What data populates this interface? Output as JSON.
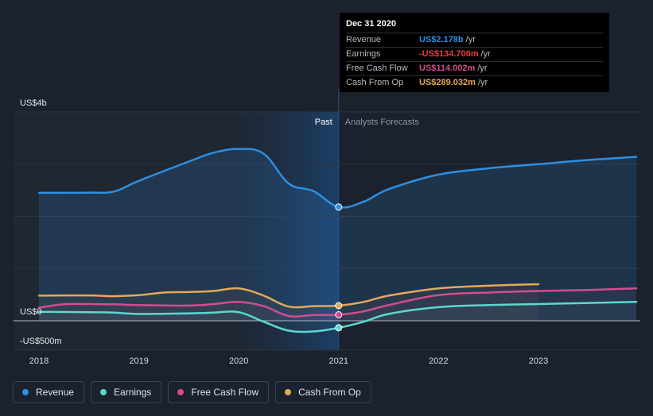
{
  "chart_data": {
    "type": "line",
    "y_ticks": [
      {
        "value": 4000,
        "label": "US$4b"
      },
      {
        "value": 0,
        "label": "US$0"
      },
      {
        "value": -500,
        "label": "-US$500m"
      }
    ],
    "x_ticks": [
      {
        "value": 2018,
        "label": "2018"
      },
      {
        "value": 2019,
        "label": "2019"
      },
      {
        "value": 2020,
        "label": "2020"
      },
      {
        "value": 2021,
        "label": "2021"
      },
      {
        "value": 2022,
        "label": "2022"
      },
      {
        "value": 2023,
        "label": "2023"
      }
    ],
    "ylim": [
      -500,
      4000
    ],
    "xlim": [
      2017.75,
      2023.98
    ],
    "grid": true,
    "past_label": "Past",
    "forecast_label": "Analysts Forecasts",
    "past_end": 2021.0,
    "past_highlight_start": 2020.0,
    "series": [
      {
        "name": "Revenue",
        "color": "#2e8fe0",
        "filled": true,
        "points": [
          [
            2018.0,
            2450
          ],
          [
            2018.5,
            2455
          ],
          [
            2018.75,
            2475
          ],
          [
            2019.0,
            2680
          ],
          [
            2019.5,
            3050
          ],
          [
            2019.75,
            3220
          ],
          [
            2020.0,
            3290
          ],
          [
            2020.25,
            3200
          ],
          [
            2020.5,
            2630
          ],
          [
            2020.75,
            2480
          ],
          [
            2021.0,
            2178
          ],
          [
            2021.25,
            2280
          ],
          [
            2021.5,
            2520
          ],
          [
            2022.0,
            2800
          ],
          [
            2022.5,
            2920
          ],
          [
            2023.0,
            3000
          ],
          [
            2023.5,
            3080
          ],
          [
            2023.98,
            3140
          ]
        ]
      },
      {
        "name": "Earnings",
        "color": "#5ad9cf",
        "filled": false,
        "points": [
          [
            2018.0,
            170
          ],
          [
            2018.5,
            165
          ],
          [
            2018.75,
            155
          ],
          [
            2019.0,
            130
          ],
          [
            2019.5,
            140
          ],
          [
            2019.75,
            155
          ],
          [
            2020.0,
            165
          ],
          [
            2020.25,
            -20
          ],
          [
            2020.5,
            -190
          ],
          [
            2020.75,
            -205
          ],
          [
            2021.0,
            -134.7
          ],
          [
            2021.25,
            -20
          ],
          [
            2021.5,
            130
          ],
          [
            2022.0,
            260
          ],
          [
            2022.5,
            300
          ],
          [
            2023.0,
            320
          ],
          [
            2023.5,
            340
          ],
          [
            2023.98,
            360
          ]
        ]
      },
      {
        "name": "Free Cash Flow",
        "color": "#d24d8e",
        "filled": false,
        "points": [
          [
            2018.0,
            250
          ],
          [
            2018.25,
            315
          ],
          [
            2018.5,
            320
          ],
          [
            2018.75,
            315
          ],
          [
            2019.0,
            300
          ],
          [
            2019.5,
            290
          ],
          [
            2019.75,
            320
          ],
          [
            2020.0,
            360
          ],
          [
            2020.25,
            280
          ],
          [
            2020.5,
            90
          ],
          [
            2020.75,
            110
          ],
          [
            2021.0,
            114
          ],
          [
            2021.25,
            180
          ],
          [
            2021.5,
            300
          ],
          [
            2022.0,
            490
          ],
          [
            2022.5,
            540
          ],
          [
            2023.0,
            570
          ],
          [
            2023.5,
            590
          ],
          [
            2023.98,
            620
          ]
        ]
      },
      {
        "name": "Cash From Op",
        "color": "#e5a85a",
        "filled": false,
        "points": [
          [
            2018.0,
            480
          ],
          [
            2018.5,
            485
          ],
          [
            2018.75,
            470
          ],
          [
            2019.0,
            490
          ],
          [
            2019.25,
            540
          ],
          [
            2019.5,
            550
          ],
          [
            2019.75,
            570
          ],
          [
            2020.0,
            620
          ],
          [
            2020.25,
            480
          ],
          [
            2020.5,
            270
          ],
          [
            2020.75,
            280
          ],
          [
            2021.0,
            289
          ],
          [
            2021.25,
            360
          ],
          [
            2021.5,
            480
          ],
          [
            2022.0,
            620
          ],
          [
            2022.5,
            670
          ],
          [
            2023.0,
            700
          ]
        ]
      }
    ]
  },
  "tooltip": {
    "date": "Dec 31 2020",
    "rows": [
      {
        "name": "Revenue",
        "value": "US$2.178b",
        "unit": "/yr",
        "color": "#2e8fe0"
      },
      {
        "name": "Earnings",
        "value": "-US$134.700m",
        "unit": "/yr",
        "color": "#ee3c3c"
      },
      {
        "name": "Free Cash Flow",
        "value": "US$114.002m",
        "unit": "/yr",
        "color": "#d24d8e"
      },
      {
        "name": "Cash From Op",
        "value": "US$289.032m",
        "unit": "/yr",
        "color": "#e5a85a"
      }
    ]
  },
  "legend": [
    {
      "name": "Revenue",
      "color": "#2e8fe0"
    },
    {
      "name": "Earnings",
      "color": "#5ad9cf"
    },
    {
      "name": "Free Cash Flow",
      "color": "#d24d8e"
    },
    {
      "name": "Cash From Op",
      "color": "#e5a85a"
    }
  ]
}
